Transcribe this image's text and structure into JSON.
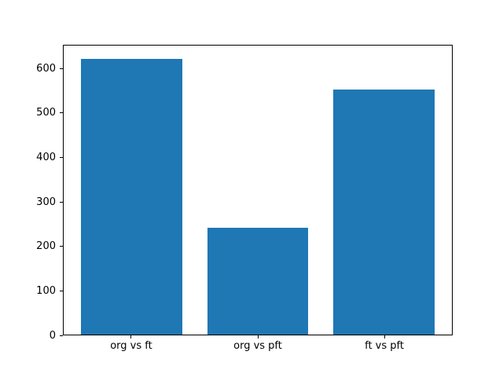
{
  "figure": {
    "background_color": "#ffffff",
    "title": ""
  },
  "chart_data": {
    "type": "bar",
    "title": "",
    "xlabel": "",
    "ylabel": "",
    "categories": [
      "org vs ft",
      "org vs pft",
      "ft vs pft"
    ],
    "values": [
      622,
      241,
      554
    ],
    "yticks": [
      0,
      100,
      200,
      300,
      400,
      500,
      600
    ],
    "ylim": [
      0,
      653
    ],
    "xlim": [
      -0.54,
      2.54
    ],
    "bar_centers": [
      0,
      1,
      2
    ],
    "bar_width_units": 0.8,
    "bar_color": "#1f77b4",
    "axes_background": "#ffffff",
    "spine_color": "#000000",
    "tick_color": "#000000",
    "label_color": "#000000",
    "grid": false,
    "legend": null
  }
}
